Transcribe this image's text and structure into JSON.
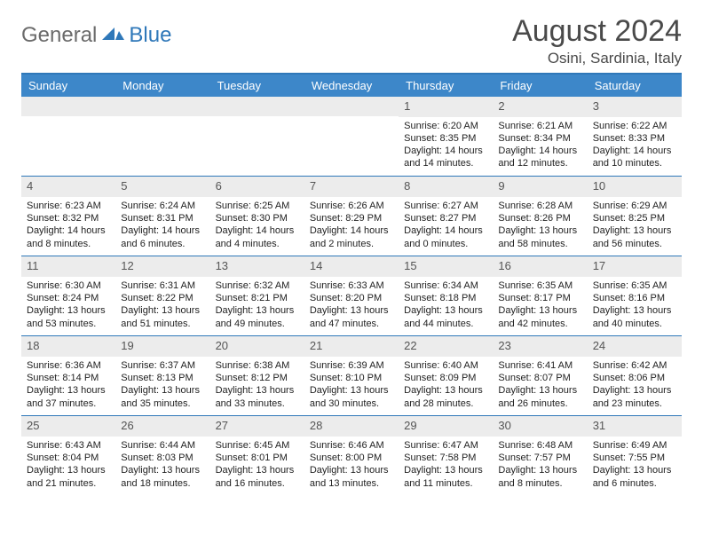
{
  "brand": {
    "part1": "General",
    "part2": "Blue"
  },
  "title": "August 2024",
  "location": "Osini, Sardinia, Italy",
  "colors": {
    "header_bg": "#3d87c9",
    "border": "#2f78b9",
    "daynum_bg": "#ececec",
    "text": "#333333",
    "muted": "#555555"
  },
  "weekdays": [
    "Sunday",
    "Monday",
    "Tuesday",
    "Wednesday",
    "Thursday",
    "Friday",
    "Saturday"
  ],
  "weeks": [
    [
      null,
      null,
      null,
      null,
      {
        "n": "1",
        "rise": "6:20 AM",
        "set": "8:35 PM",
        "dl": "14 hours and 14 minutes."
      },
      {
        "n": "2",
        "rise": "6:21 AM",
        "set": "8:34 PM",
        "dl": "14 hours and 12 minutes."
      },
      {
        "n": "3",
        "rise": "6:22 AM",
        "set": "8:33 PM",
        "dl": "14 hours and 10 minutes."
      }
    ],
    [
      {
        "n": "4",
        "rise": "6:23 AM",
        "set": "8:32 PM",
        "dl": "14 hours and 8 minutes."
      },
      {
        "n": "5",
        "rise": "6:24 AM",
        "set": "8:31 PM",
        "dl": "14 hours and 6 minutes."
      },
      {
        "n": "6",
        "rise": "6:25 AM",
        "set": "8:30 PM",
        "dl": "14 hours and 4 minutes."
      },
      {
        "n": "7",
        "rise": "6:26 AM",
        "set": "8:29 PM",
        "dl": "14 hours and 2 minutes."
      },
      {
        "n": "8",
        "rise": "6:27 AM",
        "set": "8:27 PM",
        "dl": "14 hours and 0 minutes."
      },
      {
        "n": "9",
        "rise": "6:28 AM",
        "set": "8:26 PM",
        "dl": "13 hours and 58 minutes."
      },
      {
        "n": "10",
        "rise": "6:29 AM",
        "set": "8:25 PM",
        "dl": "13 hours and 56 minutes."
      }
    ],
    [
      {
        "n": "11",
        "rise": "6:30 AM",
        "set": "8:24 PM",
        "dl": "13 hours and 53 minutes."
      },
      {
        "n": "12",
        "rise": "6:31 AM",
        "set": "8:22 PM",
        "dl": "13 hours and 51 minutes."
      },
      {
        "n": "13",
        "rise": "6:32 AM",
        "set": "8:21 PM",
        "dl": "13 hours and 49 minutes."
      },
      {
        "n": "14",
        "rise": "6:33 AM",
        "set": "8:20 PM",
        "dl": "13 hours and 47 minutes."
      },
      {
        "n": "15",
        "rise": "6:34 AM",
        "set": "8:18 PM",
        "dl": "13 hours and 44 minutes."
      },
      {
        "n": "16",
        "rise": "6:35 AM",
        "set": "8:17 PM",
        "dl": "13 hours and 42 minutes."
      },
      {
        "n": "17",
        "rise": "6:35 AM",
        "set": "8:16 PM",
        "dl": "13 hours and 40 minutes."
      }
    ],
    [
      {
        "n": "18",
        "rise": "6:36 AM",
        "set": "8:14 PM",
        "dl": "13 hours and 37 minutes."
      },
      {
        "n": "19",
        "rise": "6:37 AM",
        "set": "8:13 PM",
        "dl": "13 hours and 35 minutes."
      },
      {
        "n": "20",
        "rise": "6:38 AM",
        "set": "8:12 PM",
        "dl": "13 hours and 33 minutes."
      },
      {
        "n": "21",
        "rise": "6:39 AM",
        "set": "8:10 PM",
        "dl": "13 hours and 30 minutes."
      },
      {
        "n": "22",
        "rise": "6:40 AM",
        "set": "8:09 PM",
        "dl": "13 hours and 28 minutes."
      },
      {
        "n": "23",
        "rise": "6:41 AM",
        "set": "8:07 PM",
        "dl": "13 hours and 26 minutes."
      },
      {
        "n": "24",
        "rise": "6:42 AM",
        "set": "8:06 PM",
        "dl": "13 hours and 23 minutes."
      }
    ],
    [
      {
        "n": "25",
        "rise": "6:43 AM",
        "set": "8:04 PM",
        "dl": "13 hours and 21 minutes."
      },
      {
        "n": "26",
        "rise": "6:44 AM",
        "set": "8:03 PM",
        "dl": "13 hours and 18 minutes."
      },
      {
        "n": "27",
        "rise": "6:45 AM",
        "set": "8:01 PM",
        "dl": "13 hours and 16 minutes."
      },
      {
        "n": "28",
        "rise": "6:46 AM",
        "set": "8:00 PM",
        "dl": "13 hours and 13 minutes."
      },
      {
        "n": "29",
        "rise": "6:47 AM",
        "set": "7:58 PM",
        "dl": "13 hours and 11 minutes."
      },
      {
        "n": "30",
        "rise": "6:48 AM",
        "set": "7:57 PM",
        "dl": "13 hours and 8 minutes."
      },
      {
        "n": "31",
        "rise": "6:49 AM",
        "set": "7:55 PM",
        "dl": "13 hours and 6 minutes."
      }
    ]
  ],
  "labels": {
    "sunrise": "Sunrise: ",
    "sunset": "Sunset: ",
    "daylight": "Daylight: "
  }
}
